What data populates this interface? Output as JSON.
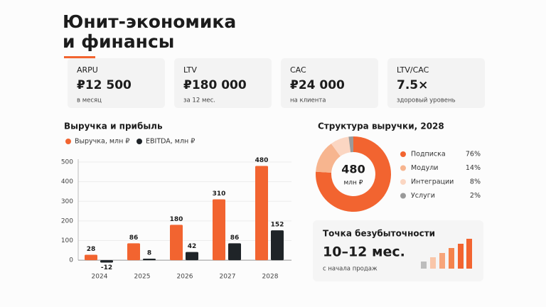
{
  "header": {
    "title_line1": "Юнит-экономика",
    "title_line2": "и финансы"
  },
  "kpis": [
    {
      "label": "ARPU",
      "value": "₽12 500",
      "note": "в месяц"
    },
    {
      "label": "LTV",
      "value": "₽180 000",
      "note": "за 12 мес."
    },
    {
      "label": "CAC",
      "value": "₽24 000",
      "note": "на клиента"
    },
    {
      "label": "LTV/CAC",
      "value": "7.5×",
      "note": "здоровый уровень"
    }
  ],
  "chart_data": [
    {
      "type": "bar",
      "title": "Выручка и прибыль",
      "categories": [
        "2024",
        "2025",
        "2026",
        "2027",
        "2028"
      ],
      "series": [
        {
          "name": "Выручка, млн ₽",
          "color": "#f26430",
          "values": [
            28,
            86,
            180,
            310,
            480
          ]
        },
        {
          "name": "EBITDA, млн ₽",
          "color": "#1f2428",
          "values": [
            -12,
            8,
            42,
            86,
            152
          ]
        }
      ],
      "ylim": [
        -50,
        500
      ],
      "yticks": [
        0,
        100,
        200,
        300,
        400,
        500
      ],
      "grid": true
    },
    {
      "type": "donut",
      "title": "Структура выручки, 2028",
      "center_value": 480,
      "center_label": "млн ₽",
      "categories": [
        "Подписка",
        "Модули",
        "Интеграции",
        "Услуги"
      ],
      "values": [
        76,
        14,
        8,
        2
      ],
      "value_labels": [
        "76%",
        "14%",
        "8%",
        "2%"
      ],
      "colors": [
        "#f26430",
        "#f7b58f",
        "#fbd6c2",
        "#9a9a9a"
      ]
    }
  ],
  "breakeven": {
    "title": "Точка безубыточности",
    "value": "10–12 мес.",
    "note": "с начала продаж"
  }
}
